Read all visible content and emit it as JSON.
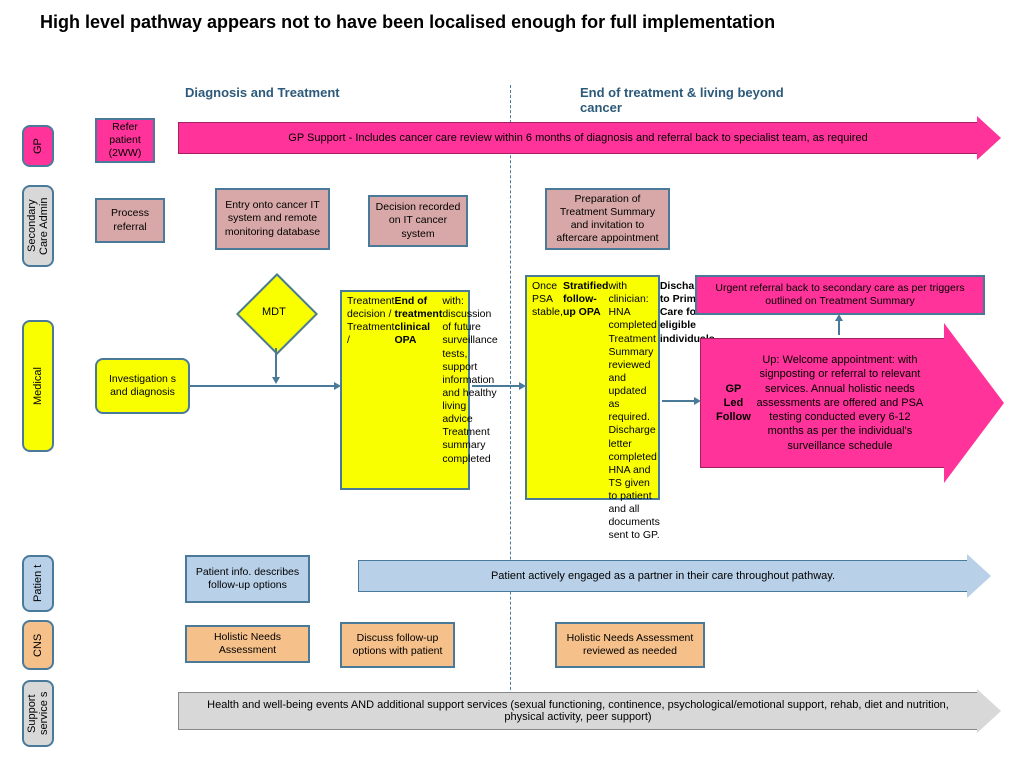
{
  "title": "High level pathway appears not to have been localised enough for full implementation",
  "sections": {
    "diagnosis": "Diagnosis and Treatment",
    "end": "End of treatment & living beyond cancer"
  },
  "lanes": {
    "gp": "GP",
    "admin": "Secondary Care Admin",
    "medical": "Medical",
    "patient": "Patien t",
    "cns": "CNS",
    "support": "Support service s"
  },
  "gp": {
    "refer": "Refer patient (2WW)",
    "support": "GP Support - Includes cancer care review within 6 months of diagnosis and referral back to specialist team, as required"
  },
  "admin": {
    "process": "Process referral",
    "entry": "Entry onto cancer IT system and remote monitoring database",
    "decision": "Decision recorded on IT cancer system",
    "prep": "Preparation of Treatment Summary and invitation to aftercare appointment"
  },
  "medical": {
    "mdt": "MDT",
    "invest": "Investigation s and diagnosis",
    "treatment": "Treatment decision / Treatment / <b>End of treatment clinical OPA</b> with: discussion of future surveillance tests, support information and healthy living advice Treatment summary completed",
    "stratified": "Once PSA stable, <b>Stratified follow-up OPA</b> with clinician: HNA completed Treatment Summary reviewed and updated as required. Discharge letter completed HNA and TS given to patient and all documents sent to GP. <b>Discharge to Primary Care for all eligible individuals.</b>",
    "urgent": "Urgent referral back to secondary care as per triggers outlined on Treatment Summary",
    "gpled": "<b>GP Led Follow</b> Up: Welcome appointment: with signposting or referral to relevant services. Annual holistic needs assessments are offered and PSA testing conducted every 6-12 months as per the individual's surveillance schedule"
  },
  "patient": {
    "info": "Patient info. describes follow-up options",
    "engaged": "Patient actively engaged as a partner in their care throughout pathway."
  },
  "cns": {
    "hna": "Holistic Needs Assessment",
    "discuss": "Discuss follow-up options with patient",
    "review": "Holistic Needs Assessment reviewed as needed"
  },
  "support": {
    "events": "Health and well-being events AND additional support services (sexual functioning, continence, psychological/emotional support, rehab, diet and nutrition, physical activity, peer support)"
  },
  "colors": {
    "hot": "#ff3399",
    "pink": "#d8a8a8",
    "yellow": "#faff00",
    "blue": "#b8d0e8",
    "orange": "#f5c08a",
    "grey": "#d8d8d8",
    "border": "#4a7a9a"
  }
}
